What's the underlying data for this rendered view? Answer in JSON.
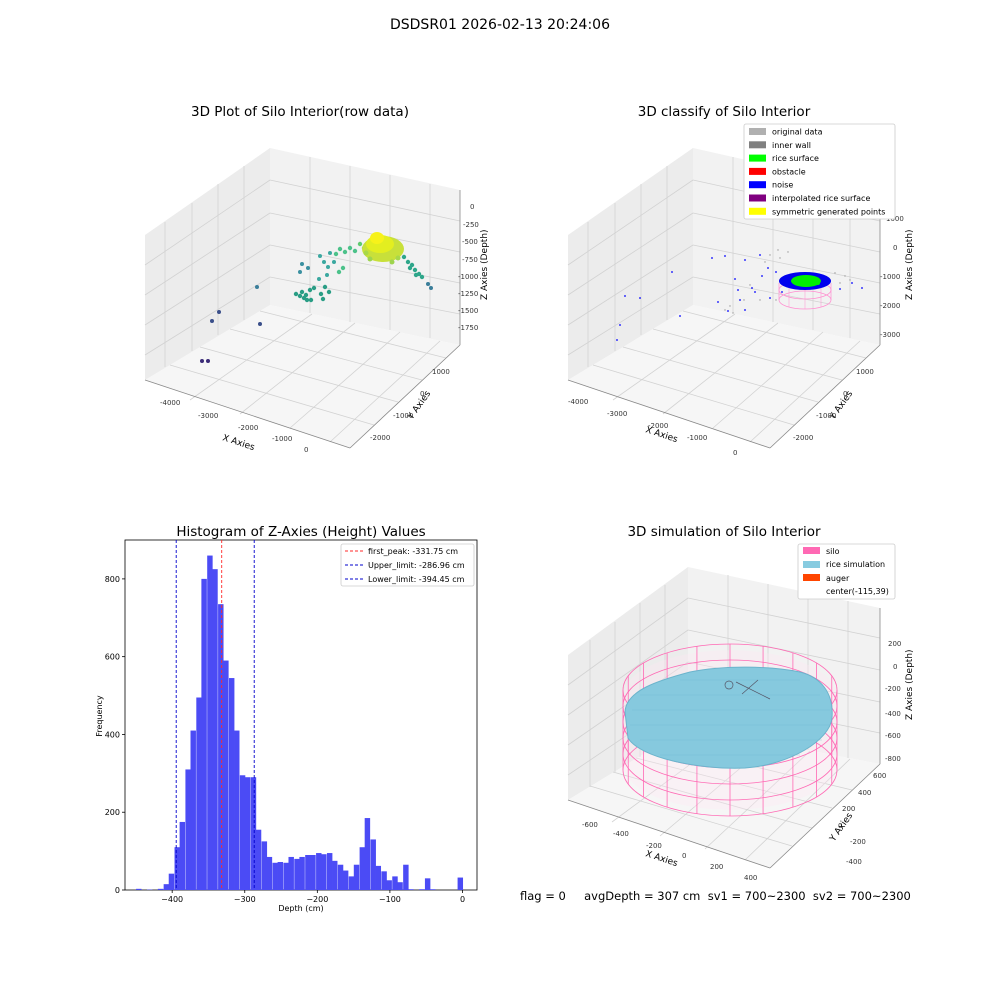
{
  "suptitle": "DSDSR01 2026-02-13 20:24:06",
  "footer": "flag = 0     avgDepth = 307 cm  sv1 = 700~2300  sv2 = 700~2300",
  "colors": {
    "histogram": "#4b4bf5",
    "first_peak": "#ff2a2a",
    "limits": "#0000cc",
    "silo": "#ff69b4",
    "rice": "#87cbe0",
    "auger": "#ff4500",
    "noise": "#0000ff",
    "rice_surface": "#00ff00"
  },
  "chart_data": [
    {
      "type": "scatter",
      "title": "3D Plot of Silo Interior(row data)",
      "xlabel": "X Axies",
      "ylabel": "Y Axies",
      "zlabel": "Z Axies (Depth)",
      "x_ticks": [
        "-4000",
        "-3000",
        "-2000",
        "-1000",
        "0"
      ],
      "y_ticks": [
        "-2000",
        "-1000",
        "0",
        "1000"
      ],
      "z_ticks": [
        "0",
        "-250",
        "-500",
        "-750",
        "-1000",
        "-1250",
        "-1500",
        "-1750"
      ]
    },
    {
      "type": "scatter",
      "title": "3D classify of Silo Interior",
      "xlabel": "X Axies",
      "ylabel": "Y Axies",
      "zlabel": "Z Axies (Depth)",
      "x_ticks": [
        "-4000",
        "-3000",
        "-2000",
        "-1000",
        "0"
      ],
      "y_ticks": [
        "-2000",
        "-1000",
        "0",
        "1000"
      ],
      "z_ticks": [
        "1000",
        "0",
        "-1000",
        "-2000",
        "-3000"
      ],
      "legend": [
        {
          "label": "original data",
          "color": "#b0b0b0"
        },
        {
          "label": "inner wall",
          "color": "#808080"
        },
        {
          "label": "rice surface",
          "color": "#00ff00"
        },
        {
          "label": "obstacle",
          "color": "#ff0000"
        },
        {
          "label": "noise",
          "color": "#0000ff"
        },
        {
          "label": "interpolated rice surface",
          "color": "#800080"
        },
        {
          "label": "symmetric generated points",
          "color": "#ffff00"
        }
      ],
      "legend_position": "top-right"
    },
    {
      "type": "bar",
      "title": "Histogram of Z-Axies (Height) Values",
      "xlabel": "Depth (cm)",
      "ylabel": "Frequency",
      "xlim": [
        -465,
        20
      ],
      "ylim": [
        0,
        900
      ],
      "bin_width": 7.5,
      "x_ticks": [
        -400,
        -300,
        -200,
        -100,
        0
      ],
      "y_ticks": [
        0,
        200,
        400,
        600,
        800
      ],
      "bins": [
        [
          -446,
          3
        ],
        [
          -431,
          1
        ],
        [
          -416,
          3
        ],
        [
          -408,
          15
        ],
        [
          -401,
          42
        ],
        [
          -393,
          110
        ],
        [
          -386,
          175
        ],
        [
          -378,
          310
        ],
        [
          -371,
          410
        ],
        [
          -363,
          495
        ],
        [
          -356,
          800
        ],
        [
          -348,
          860
        ],
        [
          -341,
          825
        ],
        [
          -333,
          735
        ],
        [
          -326,
          590
        ],
        [
          -318,
          545
        ],
        [
          -311,
          410
        ],
        [
          -303,
          295
        ],
        [
          -296,
          290
        ],
        [
          -288,
          290
        ],
        [
          -281,
          155
        ],
        [
          -273,
          125
        ],
        [
          -266,
          85
        ],
        [
          -258,
          70
        ],
        [
          -251,
          72
        ],
        [
          -243,
          70
        ],
        [
          -236,
          85
        ],
        [
          -228,
          80
        ],
        [
          -221,
          85
        ],
        [
          -213,
          90
        ],
        [
          -206,
          90
        ],
        [
          -198,
          95
        ],
        [
          -191,
          92
        ],
        [
          -183,
          95
        ],
        [
          -176,
          75
        ],
        [
          -168,
          65
        ],
        [
          -161,
          50
        ],
        [
          -153,
          35
        ],
        [
          -146,
          65
        ],
        [
          -138,
          110
        ],
        [
          -131,
          185
        ],
        [
          -123,
          130
        ],
        [
          -116,
          62
        ],
        [
          -108,
          48
        ],
        [
          -101,
          25
        ],
        [
          -93,
          35
        ],
        [
          -86,
          20
        ],
        [
          -78,
          65
        ],
        [
          -71,
          2
        ],
        [
          -56,
          2
        ],
        [
          -48,
          30
        ],
        [
          -41,
          2
        ],
        [
          -3,
          32
        ]
      ],
      "lines": [
        {
          "label": "first_peak: -331.75 cm",
          "x": -331.75,
          "color": "#ff2a2a"
        },
        {
          "label": "Upper_limit: -286.96 cm",
          "x": -286.96,
          "color": "#0000cc"
        },
        {
          "label": "Lower_limit: -394.45 cm",
          "x": -394.45,
          "color": "#0000cc"
        }
      ],
      "legend_position": "top-right"
    },
    {
      "type": "scatter",
      "title": "3D simulation of Silo Interior",
      "xlabel": "X Axies",
      "ylabel": "Y Axies",
      "zlabel": "Z Axies (Depth)",
      "x_ticks": [
        "-600",
        "-400",
        "-200",
        "0",
        "200",
        "400"
      ],
      "y_ticks": [
        "-400",
        "-200",
        "0",
        "200",
        "400",
        "600"
      ],
      "z_ticks": [
        "200",
        "0",
        "-200",
        "-400",
        "-600",
        "-800"
      ],
      "legend": [
        {
          "label": "silo",
          "color": "#ff69b4"
        },
        {
          "label": "rice simulation",
          "color": "#87cbe0"
        },
        {
          "label": "auger",
          "color": "#ff4500"
        },
        {
          "label": "center(-115,39)",
          "color": ""
        }
      ],
      "legend_position": "top-right"
    }
  ]
}
